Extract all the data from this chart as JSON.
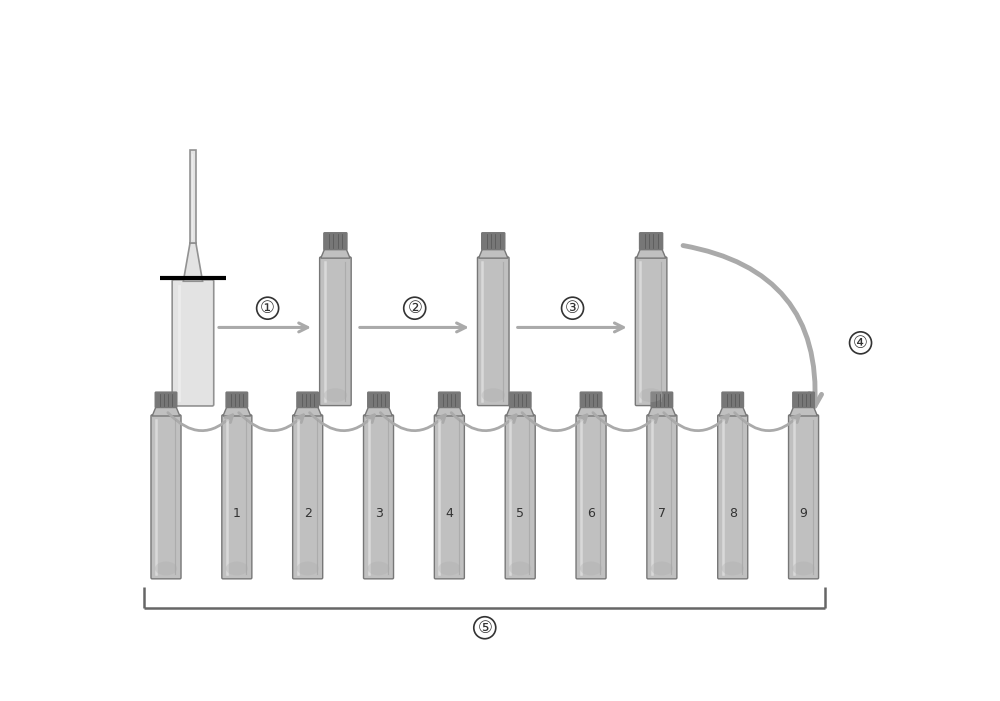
{
  "bg_color": "#ffffff",
  "arrow_color": "#aaaaaa",
  "bottle_body_color": "#c8c8c8",
  "bottle_body_color2": "#b8b8b8",
  "bottle_outline_color": "#777777",
  "cap_color": "#777777",
  "ampoule_color": "#d8d8d8",
  "text_color": "#333333",
  "step_labels": [
    "①",
    "②",
    "③",
    "④",
    "⑤"
  ],
  "bottle_numbers": [
    "1",
    "2",
    "3",
    "4",
    "5",
    "6",
    "7",
    "8",
    "9"
  ],
  "fig_width": 10.0,
  "fig_height": 7.01,
  "dpi": 100
}
